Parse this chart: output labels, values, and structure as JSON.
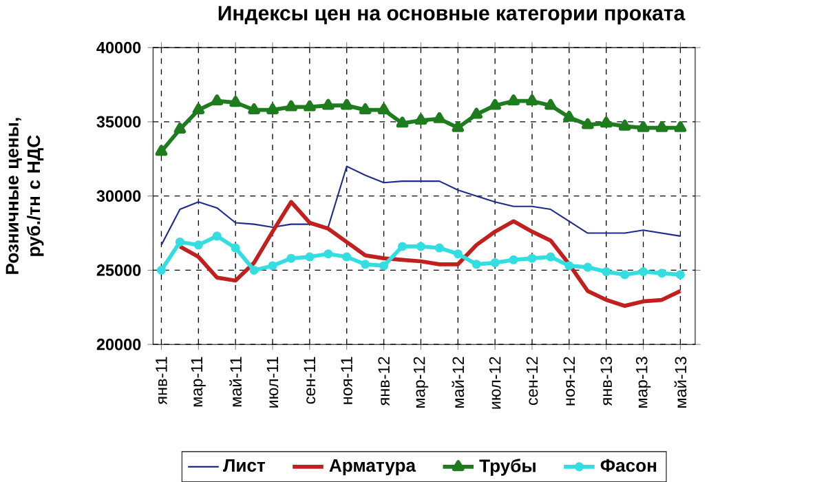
{
  "chart_data": {
    "type": "line",
    "title": "Индексы цен на основные категории проката",
    "ylabel": "Розничные цены, руб./тн с НДС",
    "categories": [
      "янв-11",
      null,
      "мар-11",
      null,
      "май-11",
      null,
      "июл-11",
      null,
      "сен-11",
      null,
      "ноя-11",
      null,
      "янв-12",
      null,
      "мар-12",
      null,
      "май-12",
      null,
      "июл-12",
      null,
      "сен-12",
      null,
      "ноя-12",
      null,
      "янв-13",
      null,
      "мар-13",
      null,
      "май-13"
    ],
    "ylim": [
      20000,
      40000
    ],
    "yticks": [
      20000,
      25000,
      30000,
      35000,
      40000
    ],
    "grid": true,
    "legend": "bottom",
    "series": [
      {
        "name": "Лист",
        "color": "#1f2a8c",
        "marker": "none",
        "values": [
          26700,
          29100,
          29600,
          29200,
          28200,
          28100,
          27900,
          28100,
          28100,
          27900,
          32000,
          31400,
          30900,
          31000,
          31000,
          31000,
          30400,
          30000,
          29600,
          29300,
          29300,
          29100,
          28300,
          27500,
          27500,
          27500,
          27700,
          27500,
          27300
        ]
      },
      {
        "name": "Арматура",
        "color": "#c0201e",
        "marker": "none",
        "values": [
          null,
          26600,
          25900,
          24500,
          24300,
          25500,
          27600,
          29600,
          28200,
          27800,
          26900,
          26000,
          25800,
          25700,
          25600,
          25400,
          25400,
          26700,
          27600,
          28300,
          27600,
          27000,
          25400,
          23600,
          23000,
          22600,
          22900,
          23000,
          23600
        ]
      },
      {
        "name": "Трубы",
        "color": "#1e7b1e",
        "marker": "triangle",
        "values": [
          33000,
          34500,
          35800,
          36400,
          36300,
          35800,
          35800,
          36000,
          36000,
          36100,
          36100,
          35800,
          35800,
          34900,
          35100,
          35200,
          34600,
          35500,
          36100,
          36400,
          36400,
          36100,
          35300,
          34800,
          34900,
          34700,
          34600,
          34600,
          34600
        ]
      },
      {
        "name": "Фасон",
        "color": "#33dde0",
        "marker": "circle",
        "values": [
          25000,
          26900,
          26700,
          27300,
          26500,
          25000,
          25300,
          25800,
          25900,
          26100,
          25900,
          25400,
          25300,
          26600,
          26600,
          26500,
          26100,
          25400,
          25500,
          25700,
          25800,
          25900,
          25300,
          25200,
          24900,
          24700,
          24900,
          24800,
          24700
        ]
      }
    ]
  }
}
